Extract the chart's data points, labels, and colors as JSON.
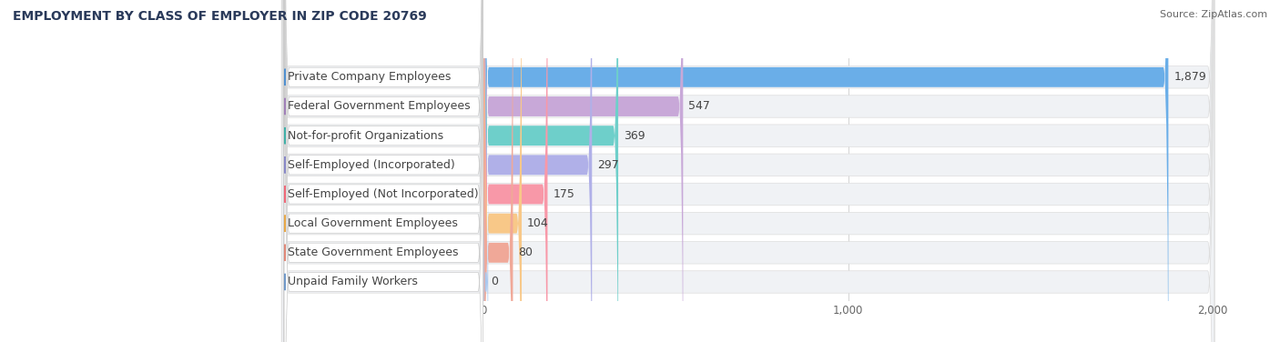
{
  "title": "EMPLOYMENT BY CLASS OF EMPLOYER IN ZIP CODE 20769",
  "source": "Source: ZipAtlas.com",
  "categories": [
    "Private Company Employees",
    "Federal Government Employees",
    "Not-for-profit Organizations",
    "Self-Employed (Incorporated)",
    "Self-Employed (Not Incorporated)",
    "Local Government Employees",
    "State Government Employees",
    "Unpaid Family Workers"
  ],
  "values": [
    1879,
    547,
    369,
    297,
    175,
    104,
    80,
    0
  ],
  "bar_colors": [
    "#6aaee8",
    "#c8a8d8",
    "#6ecfca",
    "#b0b0e8",
    "#f898a8",
    "#f8c888",
    "#f0a898",
    "#a8c8f0"
  ],
  "circle_colors": [
    "#5090d0",
    "#a080b8",
    "#40b0a8",
    "#8888c8",
    "#f06878",
    "#e8a848",
    "#e08878",
    "#7098c8"
  ],
  "xlim_data": 2000,
  "xticks": [
    0,
    1000,
    2000
  ],
  "xticklabels": [
    "0",
    "1,000",
    "2,000"
  ],
  "background_color": "#ffffff",
  "row_bg_color": "#f0f2f5",
  "title_fontsize": 10,
  "source_fontsize": 8,
  "label_fontsize": 9,
  "value_fontsize": 9,
  "title_color": "#2a3a5a",
  "source_color": "#666666",
  "label_color": "#444444",
  "value_color": "#444444"
}
